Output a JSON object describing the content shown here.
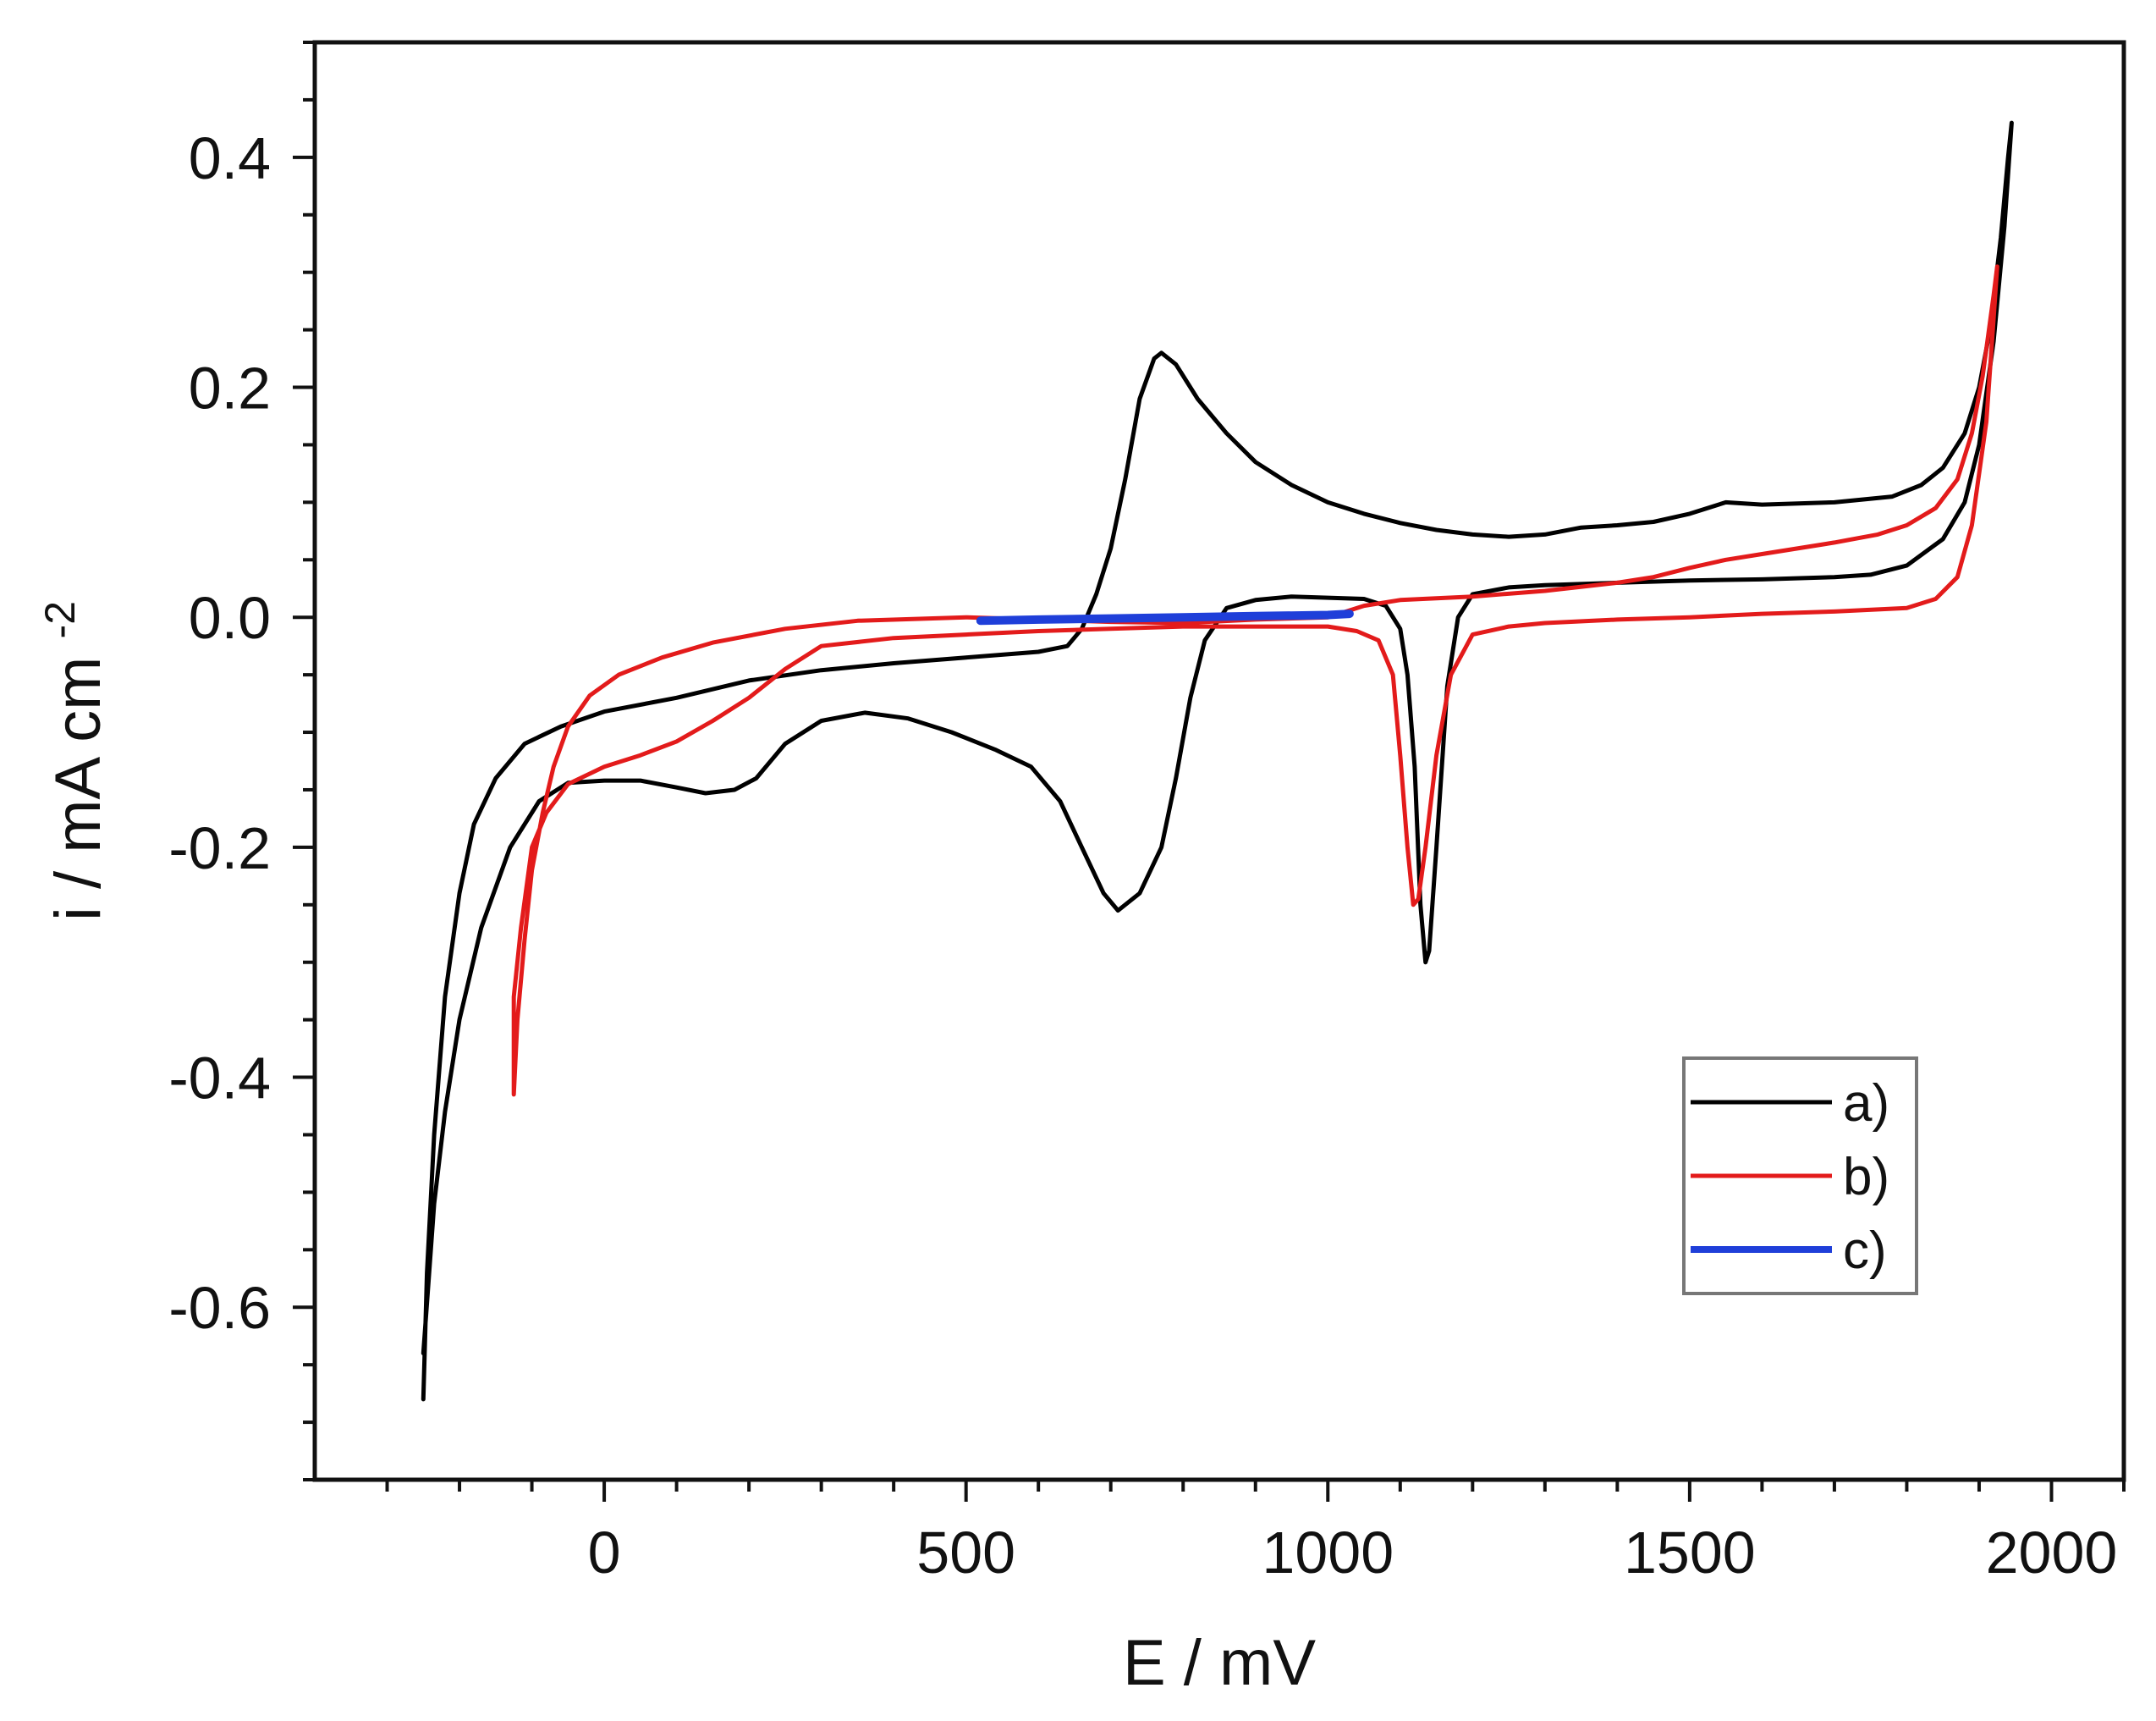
{
  "chart_data": {
    "type": "line",
    "title": "",
    "xlabel": "E / mV",
    "ylabel_main": "i / mA cm",
    "ylabel_sup": "-2",
    "xlim": [
      -400,
      2100
    ],
    "ylim": [
      -0.75,
      0.5
    ],
    "xticks": [
      0,
      500,
      1000,
      1500,
      2000
    ],
    "xtick_labels": [
      "0",
      "500",
      "1000",
      "1500",
      "2000"
    ],
    "yticks": [
      -0.6,
      -0.4,
      -0.2,
      0.0,
      0.2,
      0.4
    ],
    "ytick_labels": [
      "-0.6",
      "-0.4",
      "-0.2",
      "0.0",
      "0.2",
      "0.4"
    ],
    "x_minor_step": 100,
    "y_minor_step": 0.05,
    "grid": false,
    "legend_position": "lower-right",
    "series": [
      {
        "name": "a)",
        "color": "#000000",
        "points": [
          [
            -250,
            -0.68
          ],
          [
            -245,
            -0.57
          ],
          [
            -235,
            -0.45
          ],
          [
            -220,
            -0.33
          ],
          [
            -200,
            -0.24
          ],
          [
            -180,
            -0.18
          ],
          [
            -150,
            -0.14
          ],
          [
            -110,
            -0.11
          ],
          [
            -60,
            -0.095
          ],
          [
            0,
            -0.082
          ],
          [
            100,
            -0.07
          ],
          [
            200,
            -0.055
          ],
          [
            300,
            -0.046
          ],
          [
            400,
            -0.04
          ],
          [
            500,
            -0.035
          ],
          [
            600,
            -0.03
          ],
          [
            640,
            -0.025
          ],
          [
            660,
            -0.01
          ],
          [
            680,
            0.02
          ],
          [
            700,
            0.06
          ],
          [
            720,
            0.12
          ],
          [
            740,
            0.19
          ],
          [
            760,
            0.225
          ],
          [
            770,
            0.23
          ],
          [
            790,
            0.22
          ],
          [
            820,
            0.19
          ],
          [
            860,
            0.16
          ],
          [
            900,
            0.135
          ],
          [
            950,
            0.115
          ],
          [
            1000,
            0.1
          ],
          [
            1050,
            0.09
          ],
          [
            1100,
            0.082
          ],
          [
            1150,
            0.076
          ],
          [
            1200,
            0.072
          ],
          [
            1250,
            0.07
          ],
          [
            1300,
            0.072
          ],
          [
            1350,
            0.078
          ],
          [
            1400,
            0.08
          ],
          [
            1450,
            0.083
          ],
          [
            1500,
            0.09
          ],
          [
            1550,
            0.1
          ],
          [
            1600,
            0.098
          ],
          [
            1700,
            0.1
          ],
          [
            1780,
            0.105
          ],
          [
            1820,
            0.115
          ],
          [
            1850,
            0.13
          ],
          [
            1880,
            0.16
          ],
          [
            1900,
            0.2
          ],
          [
            1915,
            0.25
          ],
          [
            1930,
            0.33
          ],
          [
            1940,
            0.4
          ],
          [
            1945,
            0.43
          ],
          [
            1935,
            0.34
          ],
          [
            1920,
            0.24
          ],
          [
            1900,
            0.15
          ],
          [
            1880,
            0.1
          ],
          [
            1850,
            0.068
          ],
          [
            1800,
            0.045
          ],
          [
            1750,
            0.037
          ],
          [
            1700,
            0.035
          ],
          [
            1600,
            0.033
          ],
          [
            1500,
            0.032
          ],
          [
            1400,
            0.03
          ],
          [
            1300,
            0.028
          ],
          [
            1250,
            0.026
          ],
          [
            1200,
            0.02
          ],
          [
            1180,
            0.0
          ],
          [
            1165,
            -0.06
          ],
          [
            1150,
            -0.2
          ],
          [
            1140,
            -0.29
          ],
          [
            1135,
            -0.3
          ],
          [
            1128,
            -0.25
          ],
          [
            1120,
            -0.13
          ],
          [
            1110,
            -0.05
          ],
          [
            1100,
            -0.01
          ],
          [
            1080,
            0.01
          ],
          [
            1050,
            0.016
          ],
          [
            1000,
            0.017
          ],
          [
            950,
            0.018
          ],
          [
            900,
            0.015
          ],
          [
            860,
            0.008
          ],
          [
            830,
            -0.02
          ],
          [
            810,
            -0.07
          ],
          [
            790,
            -0.14
          ],
          [
            770,
            -0.2
          ],
          [
            740,
            -0.24
          ],
          [
            710,
            -0.255
          ],
          [
            690,
            -0.24
          ],
          [
            660,
            -0.2
          ],
          [
            630,
            -0.16
          ],
          [
            590,
            -0.13
          ],
          [
            540,
            -0.115
          ],
          [
            480,
            -0.1
          ],
          [
            420,
            -0.088
          ],
          [
            360,
            -0.083
          ],
          [
            300,
            -0.09
          ],
          [
            250,
            -0.11
          ],
          [
            210,
            -0.14
          ],
          [
            180,
            -0.15
          ],
          [
            140,
            -0.153
          ],
          [
            100,
            -0.148
          ],
          [
            50,
            -0.142
          ],
          [
            0,
            -0.142
          ],
          [
            -50,
            -0.144
          ],
          [
            -90,
            -0.16
          ],
          [
            -130,
            -0.2
          ],
          [
            -170,
            -0.27
          ],
          [
            -200,
            -0.35
          ],
          [
            -220,
            -0.43
          ],
          [
            -235,
            -0.51
          ],
          [
            -250,
            -0.64
          ]
        ]
      },
      {
        "name": "b)",
        "color": "#e31b1b",
        "points": [
          [
            -125,
            -0.415
          ],
          [
            -120,
            -0.35
          ],
          [
            -110,
            -0.28
          ],
          [
            -100,
            -0.22
          ],
          [
            -85,
            -0.17
          ],
          [
            -70,
            -0.13
          ],
          [
            -50,
            -0.095
          ],
          [
            -20,
            -0.068
          ],
          [
            20,
            -0.05
          ],
          [
            80,
            -0.035
          ],
          [
            150,
            -0.022
          ],
          [
            250,
            -0.01
          ],
          [
            350,
            -0.003
          ],
          [
            500,
            0.0
          ],
          [
            600,
            -0.002
          ],
          [
            700,
            -0.004
          ],
          [
            800,
            -0.005
          ],
          [
            900,
            -0.002
          ],
          [
            1000,
            0.0
          ],
          [
            1050,
            0.01
          ],
          [
            1100,
            0.015
          ],
          [
            1200,
            0.018
          ],
          [
            1300,
            0.023
          ],
          [
            1400,
            0.03
          ],
          [
            1450,
            0.035
          ],
          [
            1500,
            0.043
          ],
          [
            1550,
            0.05
          ],
          [
            1600,
            0.055
          ],
          [
            1700,
            0.065
          ],
          [
            1760,
            0.072
          ],
          [
            1800,
            0.08
          ],
          [
            1840,
            0.095
          ],
          [
            1870,
            0.12
          ],
          [
            1890,
            0.16
          ],
          [
            1905,
            0.21
          ],
          [
            1920,
            0.28
          ],
          [
            1925,
            0.305
          ],
          [
            1920,
            0.26
          ],
          [
            1910,
            0.17
          ],
          [
            1890,
            0.08
          ],
          [
            1870,
            0.035
          ],
          [
            1840,
            0.016
          ],
          [
            1800,
            0.008
          ],
          [
            1700,
            0.005
          ],
          [
            1600,
            0.003
          ],
          [
            1500,
            0.0
          ],
          [
            1400,
            -0.002
          ],
          [
            1300,
            -0.005
          ],
          [
            1250,
            -0.008
          ],
          [
            1200,
            -0.015
          ],
          [
            1170,
            -0.05
          ],
          [
            1150,
            -0.12
          ],
          [
            1135,
            -0.2
          ],
          [
            1125,
            -0.245
          ],
          [
            1118,
            -0.25
          ],
          [
            1110,
            -0.2
          ],
          [
            1100,
            -0.12
          ],
          [
            1090,
            -0.05
          ],
          [
            1070,
            -0.02
          ],
          [
            1040,
            -0.012
          ],
          [
            1000,
            -0.008
          ],
          [
            900,
            -0.008
          ],
          [
            800,
            -0.008
          ],
          [
            700,
            -0.01
          ],
          [
            600,
            -0.012
          ],
          [
            500,
            -0.015
          ],
          [
            400,
            -0.018
          ],
          [
            300,
            -0.025
          ],
          [
            250,
            -0.045
          ],
          [
            200,
            -0.07
          ],
          [
            150,
            -0.09
          ],
          [
            100,
            -0.108
          ],
          [
            50,
            -0.12
          ],
          [
            0,
            -0.13
          ],
          [
            -50,
            -0.145
          ],
          [
            -80,
            -0.17
          ],
          [
            -100,
            -0.2
          ],
          [
            -115,
            -0.27
          ],
          [
            -125,
            -0.33
          ],
          [
            -125,
            -0.415
          ]
        ]
      },
      {
        "name": "c)",
        "color": "#1f3fd9",
        "points": [
          [
            520,
            -0.003
          ],
          [
            600,
            -0.002
          ],
          [
            700,
            -0.001
          ],
          [
            800,
            0.0
          ],
          [
            900,
            0.001
          ],
          [
            1000,
            0.002
          ],
          [
            1030,
            0.003
          ]
        ]
      }
    ]
  }
}
